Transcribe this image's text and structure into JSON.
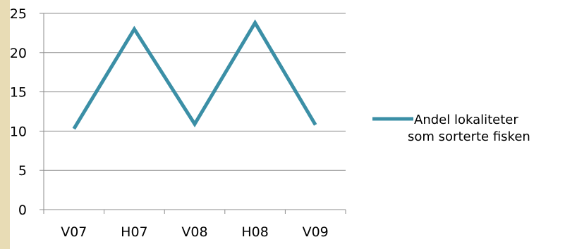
{
  "chart_data": {
    "type": "line",
    "categories": [
      "V07",
      "H07",
      "V08",
      "H08",
      "V09"
    ],
    "series": [
      {
        "name": "Andel lokaliteter som sorterte fisken",
        "name_lines": [
          "Andel lokaliteter",
          "som sorterte fisken"
        ],
        "values": [
          10.3,
          23.0,
          10.9,
          23.8,
          10.8
        ],
        "color": "#3b8fa6"
      }
    ],
    "yticks": [
      "0",
      "5",
      "10",
      "15",
      "20",
      "25"
    ],
    "ylim": [
      0,
      25
    ],
    "grid": true,
    "legend_position": "right",
    "title": "",
    "xlabel": "",
    "ylabel": ""
  },
  "page": {
    "accent_strip_color": "#e8dcb5",
    "grid_color": "#8c8c8c"
  }
}
